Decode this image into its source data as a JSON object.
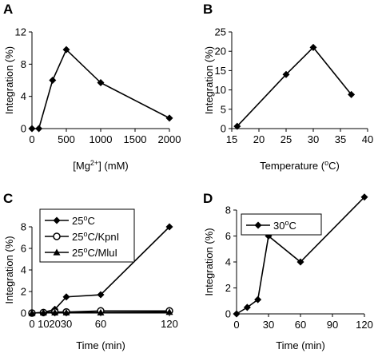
{
  "chart_data": [
    {
      "panel": "A",
      "type": "line",
      "x": [
        0,
        100,
        300,
        500,
        1000,
        2000
      ],
      "series": [
        {
          "values": [
            0,
            0,
            6,
            9.8,
            5.7,
            1.3
          ],
          "marker": "diamond",
          "color": "#000000"
        }
      ],
      "xlim": [
        0,
        2000
      ],
      "ylim": [
        0,
        12
      ],
      "xticks": [
        0,
        500,
        1000,
        1500,
        2000
      ],
      "yticks": [
        0,
        4,
        8,
        12
      ],
      "ylabel": "Integration (%)",
      "xlabel_parts": [
        "[Mg",
        "2+",
        "] (mM)"
      ],
      "grid": false
    },
    {
      "panel": "B",
      "type": "line",
      "x": [
        16,
        25,
        30,
        37
      ],
      "series": [
        {
          "values": [
            0.6,
            14,
            21,
            8.8
          ],
          "marker": "diamond",
          "color": "#000000"
        }
      ],
      "xlim": [
        15,
        40
      ],
      "ylim": [
        0,
        25
      ],
      "xticks": [
        15,
        20,
        25,
        30,
        35,
        40
      ],
      "yticks": [
        0,
        5,
        10,
        15,
        20,
        25
      ],
      "ylabel": "Integration (%)",
      "xlabel_parts": [
        "Temperature (",
        "o",
        "C)"
      ],
      "grid": false
    },
    {
      "panel": "C",
      "type": "line",
      "x": [
        0,
        10,
        20,
        30,
        60,
        120
      ],
      "series": [
        {
          "name_parts": [
            "25",
            "o",
            "C"
          ],
          "values": [
            0,
            0.05,
            0.35,
            1.5,
            1.7,
            8
          ],
          "marker": "diamond",
          "color": "#000000"
        },
        {
          "name_parts": [
            "25",
            "o",
            "C/KpnI"
          ],
          "values": [
            0,
            0.05,
            0.1,
            0.1,
            0.2,
            0.2
          ],
          "marker": "circle",
          "color": "#000000"
        },
        {
          "name_parts": [
            "25",
            "o",
            "C/MluI"
          ],
          "values": [
            0,
            0.05,
            0.05,
            0.05,
            0.05,
            0.1
          ],
          "marker": "triangle",
          "color": "#000000"
        }
      ],
      "xlim": [
        0,
        120
      ],
      "ylim": [
        0,
        8
      ],
      "xticks": [
        0,
        10,
        20,
        30,
        60,
        120
      ],
      "xscale": "categorical-spacing",
      "yticks": [
        0,
        2,
        4,
        6,
        8
      ],
      "ylabel": "Integration (%)",
      "xlabel": "Time (min)",
      "legend": "top-left",
      "grid": false
    },
    {
      "panel": "D",
      "type": "line",
      "x": [
        0,
        10,
        20,
        30,
        60,
        120
      ],
      "series": [
        {
          "name_parts": [
            "30",
            "o",
            "C"
          ],
          "values": [
            0,
            0.5,
            1.1,
            6,
            4,
            9
          ],
          "marker": "diamond",
          "color": "#000000"
        }
      ],
      "xlim": [
        0,
        120
      ],
      "ylim": [
        0,
        9
      ],
      "xticks": [
        0,
        30,
        60,
        90,
        120
      ],
      "yticks": [
        0,
        2,
        4,
        6,
        8
      ],
      "ylabel": "Integration (%)",
      "xlabel": "Time (min)",
      "legend": "top-left",
      "grid": false
    }
  ]
}
